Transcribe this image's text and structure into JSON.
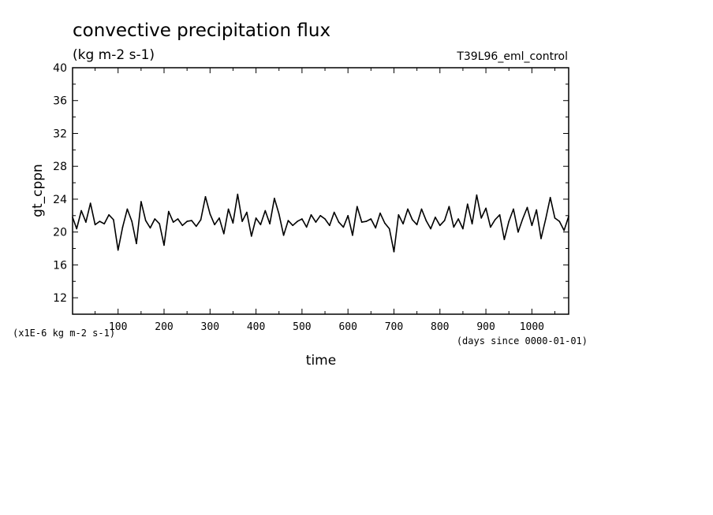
{
  "chart_data": {
    "type": "line",
    "title": "convective precipitation flux",
    "subtitle": "(kg m-2 s-1)",
    "run_label": "T39L96_eml_control",
    "ylabel": "gt_cppn",
    "xlabel": "time",
    "y_scale_note": "(x1E-6 kg m-2 s-1)",
    "x_unit_note": "(days since 0000-01-01)",
    "xlim": [
      1,
      1080
    ],
    "ylim": [
      10,
      40
    ],
    "x_ticks": [
      100,
      200,
      300,
      400,
      500,
      600,
      700,
      800,
      900,
      1000
    ],
    "y_ticks": [
      12,
      16,
      20,
      24,
      28,
      32,
      36,
      40
    ],
    "grid": false,
    "series": [
      {
        "x": [
          1,
          10,
          20,
          30,
          40,
          50,
          60,
          70,
          80,
          90,
          100,
          110,
          120,
          130,
          140,
          150,
          160,
          170,
          180,
          190,
          200,
          210,
          220,
          230,
          240,
          250,
          260,
          270,
          280,
          290,
          300,
          310,
          320,
          330,
          340,
          350,
          360,
          370,
          380,
          390,
          400,
          410,
          420,
          430,
          440,
          450,
          460,
          470,
          480,
          490,
          500,
          510,
          520,
          530,
          540,
          550,
          560,
          570,
          580,
          590,
          600,
          610,
          620,
          630,
          640,
          650,
          660,
          670,
          680,
          690,
          700,
          710,
          720,
          730,
          740,
          750,
          760,
          770,
          780,
          790,
          800,
          810,
          820,
          830,
          840,
          850,
          860,
          870,
          880,
          890,
          900,
          910,
          920,
          930,
          940,
          950,
          960,
          970,
          980,
          990,
          1000,
          1010,
          1020,
          1030,
          1040,
          1050,
          1060,
          1070,
          1080
        ],
        "values": [
          21.8,
          20.4,
          22.6,
          21.2,
          23.5,
          20.9,
          21.3,
          21.0,
          22.1,
          21.5,
          17.8,
          20.6,
          22.8,
          21.3,
          18.6,
          23.7,
          21.4,
          20.5,
          21.6,
          21.0,
          18.4,
          22.5,
          21.2,
          21.6,
          20.8,
          21.3,
          21.4,
          20.7,
          21.5,
          24.3,
          22.2,
          20.9,
          21.7,
          19.8,
          22.8,
          21.1,
          24.6,
          21.3,
          22.4,
          19.5,
          21.7,
          20.9,
          22.6,
          21.0,
          24.1,
          22.2,
          19.6,
          21.4,
          20.8,
          21.3,
          21.6,
          20.6,
          22.1,
          21.2,
          22.0,
          21.6,
          20.8,
          22.4,
          21.2,
          20.6,
          22.0,
          19.6,
          23.1,
          21.2,
          21.3,
          21.6,
          20.5,
          22.3,
          21.1,
          20.4,
          17.6,
          22.1,
          21.0,
          22.8,
          21.5,
          20.9,
          22.8,
          21.4,
          20.4,
          21.8,
          20.8,
          21.4,
          23.1,
          20.6,
          21.6,
          20.4,
          23.4,
          21.0,
          24.5,
          21.7,
          22.9,
          20.6,
          21.5,
          22.1,
          19.1,
          21.3,
          22.8,
          20.0,
          21.6,
          23.0,
          20.8,
          22.7,
          19.2,
          21.6,
          24.2,
          21.7,
          21.3,
          20.2,
          21.9
        ]
      }
    ]
  }
}
